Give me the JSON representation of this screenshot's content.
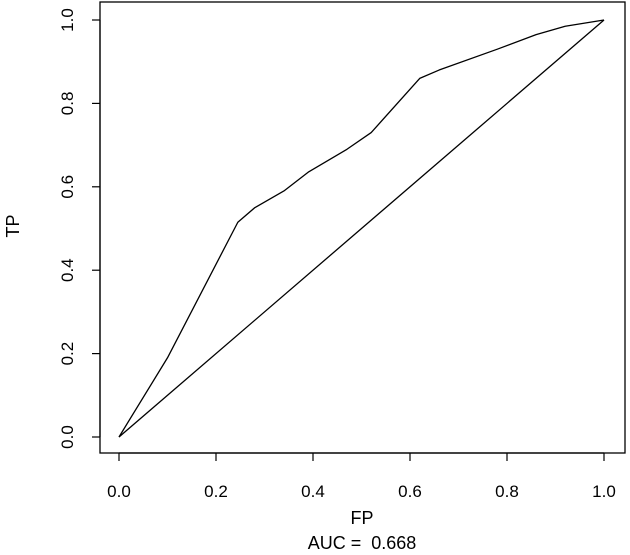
{
  "chart_data": {
    "type": "line",
    "xlabel": "FP",
    "ylabel": "TP",
    "annotation": "AUC =  0.668",
    "xlim": [
      0,
      1
    ],
    "ylim": [
      0,
      1
    ],
    "x_ticks": [
      "0.0",
      "0.2",
      "0.4",
      "0.6",
      "0.8",
      "1.0"
    ],
    "y_ticks": [
      "0.0",
      "0.2",
      "0.4",
      "0.6",
      "0.8",
      "1.0"
    ],
    "grid": false,
    "series": [
      {
        "x": [
          0.0,
          0.1,
          0.245,
          0.28,
          0.34,
          0.39,
          0.47,
          0.52,
          0.62,
          0.66,
          0.78,
          0.86,
          0.92,
          1.0
        ],
        "y": [
          0.0,
          0.19,
          0.515,
          0.55,
          0.59,
          0.635,
          0.69,
          0.73,
          0.86,
          0.88,
          0.93,
          0.965,
          0.985,
          1.0
        ]
      },
      {
        "x": [
          0.0,
          1.0
        ],
        "y": [
          0.0,
          1.0
        ]
      }
    ]
  }
}
